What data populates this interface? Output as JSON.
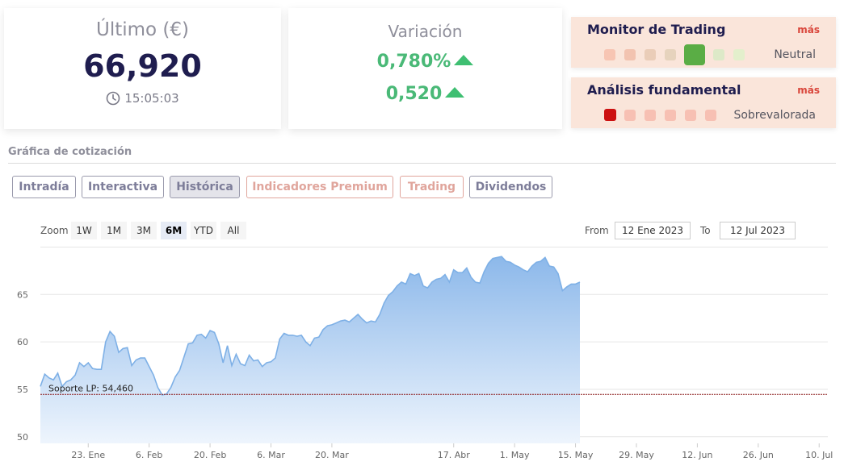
{
  "quote": {
    "title": "Último (€)",
    "price": "66,920",
    "time": "15:05:03"
  },
  "variation": {
    "title": "Variación",
    "percent": "0,780%",
    "absolute": "0,520",
    "direction": "up"
  },
  "monitors": [
    {
      "title": "Monitor de Trading",
      "more": "más",
      "status": "Neutral",
      "dots": [
        "#f7c5b3",
        "#f2c3b0",
        "#eacdb8",
        "#e6d3bd",
        "#5aad45",
        "#dde9c8",
        "#e3efcc"
      ]
    },
    {
      "title": "Análisis fundamental",
      "more": "más",
      "status": "Sobrevalorada",
      "dots": [
        "#cc1111",
        "#f7c0b3",
        "#f7c0b3",
        "#f7c0b3",
        "#f7c0b3",
        "#f7c0b3"
      ]
    }
  ],
  "section_title": "Gráfica de cotización",
  "tabs": [
    {
      "label": "Intradía",
      "style": "normal"
    },
    {
      "label": "Interactiva",
      "style": "normal"
    },
    {
      "label": "Histórica",
      "style": "active"
    },
    {
      "label": "Indicadores Premium",
      "style": "premium"
    },
    {
      "label": "Trading",
      "style": "premium"
    },
    {
      "label": "Dividendos",
      "style": "normal"
    }
  ],
  "zoom": {
    "label": "Zoom",
    "options": [
      "1W",
      "1M",
      "3M",
      "6M",
      "YTD",
      "All"
    ],
    "selected": "6M"
  },
  "range": {
    "from_label": "From",
    "from": "12 Ene 2023",
    "to_label": "To",
    "to": "12 Jul 2023"
  },
  "chart_data": {
    "type": "area",
    "ylim": [
      49.3,
      69.7
    ],
    "y_ticks": [
      50,
      55,
      60,
      65
    ],
    "x_ticks": [
      {
        "label": "23. Ene",
        "day": 11
      },
      {
        "label": "6. Feb",
        "day": 25
      },
      {
        "label": "20. Feb",
        "day": 39
      },
      {
        "label": "6. Mar",
        "day": 53
      },
      {
        "label": "20. Mar",
        "day": 67
      },
      {
        "label": "17. Abr",
        "day": 95
      },
      {
        "label": "1. May",
        "day": 109
      },
      {
        "label": "15. May",
        "day": 123
      },
      {
        "label": "29. May",
        "day": 137
      },
      {
        "label": "12. Jun",
        "day": 151
      },
      {
        "label": "26. Jun",
        "day": 165
      },
      {
        "label": "10. Jul",
        "day": 179
      }
    ],
    "x_range": [
      0,
      181
    ],
    "series": [
      {
        "points": [
          [
            0,
            55.3
          ],
          [
            1,
            56.6
          ],
          [
            2,
            56.2
          ],
          [
            3,
            56.0
          ],
          [
            4,
            56.7
          ],
          [
            5,
            55.3
          ],
          [
            6,
            55.8
          ],
          [
            7,
            56.0
          ],
          [
            8,
            56.5
          ],
          [
            9,
            57.8
          ],
          [
            10,
            57.4
          ],
          [
            11,
            57.8
          ],
          [
            12,
            57.2
          ],
          [
            13,
            57.1
          ],
          [
            14,
            57.1
          ],
          [
            15,
            60.0
          ],
          [
            16,
            61.1
          ],
          [
            17,
            60.6
          ],
          [
            18,
            58.9
          ],
          [
            19,
            59.3
          ],
          [
            20,
            59.4
          ],
          [
            21,
            57.5
          ],
          [
            22,
            58.1
          ],
          [
            23,
            58.3
          ],
          [
            24,
            58.3
          ],
          [
            25,
            57.4
          ],
          [
            26,
            56.5
          ],
          [
            27,
            55.2
          ],
          [
            28,
            54.4
          ],
          [
            29,
            54.5
          ],
          [
            30,
            55.2
          ],
          [
            31,
            56.3
          ],
          [
            32,
            57.0
          ],
          [
            33,
            58.4
          ],
          [
            34,
            59.8
          ],
          [
            35,
            59.9
          ],
          [
            36,
            60.7
          ],
          [
            37,
            60.8
          ],
          [
            38,
            60.4
          ],
          [
            39,
            61.2
          ],
          [
            40,
            61.0
          ],
          [
            41,
            59.8
          ],
          [
            42,
            57.8
          ],
          [
            43,
            59.6
          ],
          [
            44,
            57.5
          ],
          [
            45,
            58.7
          ],
          [
            46,
            57.7
          ],
          [
            47,
            57.5
          ],
          [
            48,
            58.6
          ],
          [
            49,
            58.0
          ],
          [
            50,
            58.1
          ],
          [
            51,
            57.4
          ],
          [
            52,
            57.8
          ],
          [
            53,
            57.9
          ],
          [
            54,
            58.3
          ],
          [
            55,
            60.3
          ],
          [
            56,
            60.9
          ],
          [
            57,
            60.7
          ],
          [
            58,
            60.7
          ],
          [
            59,
            60.6
          ],
          [
            60,
            60.7
          ],
          [
            61,
            60.0
          ],
          [
            62,
            59.6
          ],
          [
            63,
            60.4
          ],
          [
            64,
            60.5
          ],
          [
            65,
            61.3
          ],
          [
            66,
            61.7
          ],
          [
            67,
            61.8
          ],
          [
            68,
            62.0
          ],
          [
            69,
            62.2
          ],
          [
            70,
            62.3
          ],
          [
            71,
            62.1
          ],
          [
            72,
            62.5
          ],
          [
            73,
            62.9
          ],
          [
            74,
            62.4
          ],
          [
            75,
            62.0
          ],
          [
            76,
            62.2
          ],
          [
            77,
            62.1
          ],
          [
            78,
            62.9
          ],
          [
            79,
            64.1
          ],
          [
            80,
            64.9
          ],
          [
            81,
            65.3
          ],
          [
            82,
            65.9
          ],
          [
            83,
            66.3
          ],
          [
            84,
            66.1
          ],
          [
            85,
            67.2
          ],
          [
            86,
            67.0
          ],
          [
            87,
            67.2
          ],
          [
            88,
            65.9
          ],
          [
            89,
            65.7
          ],
          [
            90,
            66.3
          ],
          [
            91,
            66.6
          ],
          [
            92,
            66.7
          ],
          [
            93,
            67.1
          ],
          [
            94,
            66.3
          ],
          [
            95,
            67.6
          ],
          [
            96,
            67.3
          ],
          [
            97,
            67.3
          ],
          [
            98,
            67.8
          ],
          [
            99,
            66.8
          ],
          [
            100,
            66.3
          ],
          [
            101,
            66.2
          ],
          [
            102,
            67.4
          ],
          [
            103,
            68.3
          ],
          [
            104,
            68.8
          ],
          [
            105,
            68.9
          ],
          [
            106,
            69.0
          ],
          [
            107,
            68.5
          ],
          [
            108,
            68.4
          ],
          [
            109,
            68.1
          ],
          [
            110,
            67.9
          ],
          [
            111,
            67.6
          ],
          [
            112,
            67.4
          ],
          [
            113,
            68.0
          ],
          [
            114,
            68.4
          ],
          [
            115,
            68.5
          ],
          [
            116,
            68.9
          ],
          [
            117,
            68.0
          ],
          [
            118,
            67.9
          ],
          [
            119,
            67.2
          ],
          [
            120,
            65.4
          ],
          [
            121,
            65.8
          ],
          [
            122,
            66.1
          ],
          [
            123,
            66.1
          ],
          [
            124,
            66.3
          ]
        ]
      }
    ],
    "annotation": {
      "label": "Soporte LP: 54,460",
      "value": 54.46
    },
    "colors": {
      "line": "#7eb0e6",
      "fill_top": "#8cb8ea",
      "fill_bottom": "#eef5fd",
      "support": "#8b1a1a"
    }
  }
}
